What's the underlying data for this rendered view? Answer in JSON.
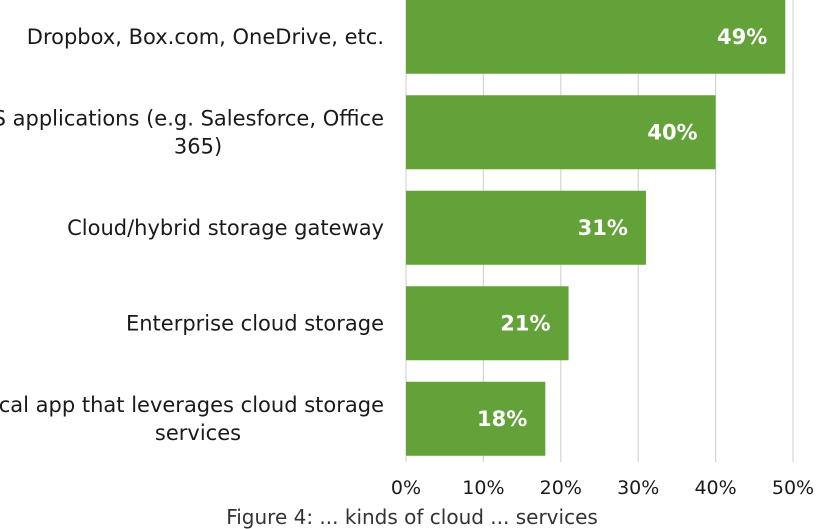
{
  "chart_data": {
    "type": "bar",
    "orientation": "horizontal",
    "categories": [
      [
        "Dropbox, Box.com, OneDrive, etc."
      ],
      [
        "SaaS applications (e.g. Salesforce, Office",
        "365)"
      ],
      [
        "Cloud/hybrid storage gateway"
      ],
      [
        "Enterprise cloud storage"
      ],
      [
        "Local app that leverages cloud storage",
        "services"
      ]
    ],
    "values": [
      49,
      40,
      31,
      21,
      18
    ],
    "data_labels": [
      "49%",
      "40%",
      "31%",
      "21%",
      "18%"
    ],
    "x_ticks": [
      "0%",
      "10%",
      "20%",
      "30%",
      "40%",
      "50%"
    ],
    "xlim": [
      0,
      50
    ],
    "grid": "vertical",
    "bar_color": "#63a238",
    "grid_color": "#d4d4d4",
    "caption": "Figure 4: ... kinds of cloud ... services"
  }
}
